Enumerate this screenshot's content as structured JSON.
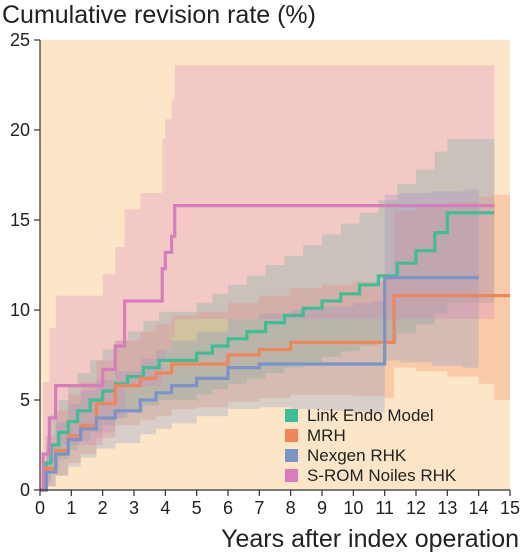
{
  "chart_data": {
    "type": "line",
    "title": "Cumulative revision rate (%)",
    "xlabel": "Years after index operation",
    "ylabel": "",
    "xlim": [
      0,
      15
    ],
    "ylim": [
      0,
      25
    ],
    "xticks": [
      "0",
      "1",
      "2",
      "3",
      "4",
      "5",
      "6",
      "7",
      "8",
      "9",
      "10",
      "11",
      "12",
      "13",
      "14",
      "15"
    ],
    "yticks": [
      "0",
      "5",
      "10",
      "15",
      "20",
      "25"
    ],
    "grid": false,
    "legend_position": "bottom-right",
    "background_color": "#fde6c8",
    "series": [
      {
        "name": "Link Endo Model",
        "color": "#3dbf96",
        "x": [
          0,
          0.2,
          0.35,
          0.6,
          0.9,
          1.2,
          1.6,
          2.0,
          2.4,
          2.8,
          3.3,
          3.8,
          5.0,
          5.5,
          6.0,
          6.6,
          7.2,
          7.8,
          8.4,
          9.0,
          9.6,
          10.2,
          10.8,
          11.4,
          12.0,
          12.6,
          13.0,
          13.5,
          14.3,
          14.5
        ],
        "y": [
          0,
          1.5,
          2.5,
          3.2,
          3.8,
          4.4,
          5.0,
          5.5,
          5.9,
          6.3,
          6.8,
          7.2,
          7.6,
          8.0,
          8.4,
          8.8,
          9.3,
          9.7,
          10.1,
          10.5,
          10.9,
          11.4,
          11.9,
          12.6,
          13.3,
          14.3,
          15.4,
          15.4,
          15.4,
          15.4
        ],
        "ci_upper": [
          0,
          3.0,
          4.2,
          5.0,
          5.8,
          6.5,
          7.2,
          7.8,
          8.3,
          8.8,
          9.4,
          9.9,
          10.4,
          10.9,
          11.4,
          11.9,
          12.5,
          13.0,
          13.6,
          14.2,
          14.8,
          15.4,
          16.1,
          17.0,
          17.8,
          18.8,
          19.5,
          19.5,
          19.5,
          19.5
        ],
        "ci_lower": [
          0,
          0.5,
          1.1,
          1.7,
          2.2,
          2.7,
          3.2,
          3.6,
          4.0,
          4.3,
          4.7,
          5.0,
          5.3,
          5.6,
          5.9,
          6.2,
          6.5,
          6.8,
          7.1,
          7.4,
          7.7,
          8.0,
          8.3,
          8.7,
          9.2,
          9.8,
          10.4,
          10.4,
          10.4,
          10.4
        ]
      },
      {
        "name": "MRH",
        "color": "#f0855a",
        "x": [
          0,
          0.2,
          0.5,
          0.9,
          1.3,
          1.8,
          2.4,
          3.2,
          3.7,
          4.2,
          5.0,
          6.0,
          7.0,
          8.0,
          9.0,
          10.0,
          11.0,
          11.3,
          12.0,
          13.0,
          14.0,
          14.5,
          15.0
        ],
        "y": [
          0,
          1.2,
          2.2,
          3.0,
          3.6,
          4.8,
          5.8,
          6.2,
          6.5,
          7.0,
          7.0,
          7.5,
          7.8,
          8.2,
          8.2,
          8.2,
          8.2,
          10.8,
          10.8,
          10.8,
          10.8,
          10.8,
          10.8
        ],
        "ci_upper": [
          0,
          3.0,
          4.4,
          5.3,
          6.0,
          7.2,
          8.3,
          8.8,
          9.2,
          9.7,
          9.9,
          10.4,
          10.8,
          11.2,
          11.4,
          11.6,
          11.8,
          15.5,
          15.8,
          16.0,
          16.3,
          16.4,
          16.5
        ],
        "ci_lower": [
          0,
          0.2,
          0.8,
          1.5,
          2.0,
          2.9,
          3.6,
          3.9,
          4.1,
          4.5,
          4.6,
          4.9,
          5.1,
          5.3,
          5.3,
          5.2,
          5.1,
          6.8,
          6.6,
          6.3,
          5.9,
          5.0,
          5.0
        ]
      },
      {
        "name": "Nexgen RHK",
        "color": "#7a94c8",
        "x": [
          0,
          0.2,
          0.5,
          0.9,
          1.3,
          1.8,
          2.4,
          3.2,
          3.7,
          4.2,
          5.0,
          6.0,
          7.0,
          8.0,
          9.0,
          10.0,
          10.6,
          11.0,
          11.5,
          12.5,
          13.5,
          14.0
        ],
        "y": [
          0,
          1.0,
          2.0,
          2.8,
          3.4,
          4.0,
          4.4,
          5.0,
          5.4,
          5.8,
          6.2,
          6.8,
          7.0,
          7.0,
          7.0,
          7.0,
          7.0,
          11.8,
          11.8,
          11.8,
          11.8,
          11.8
        ],
        "ci_upper": [
          0,
          2.5,
          3.8,
          4.8,
          5.5,
          6.1,
          6.6,
          7.3,
          7.8,
          8.3,
          8.8,
          9.5,
          9.8,
          10.0,
          10.2,
          10.4,
          10.5,
          16.4,
          16.5,
          16.6,
          16.7,
          16.8
        ],
        "ci_lower": [
          0,
          0.2,
          0.8,
          1.3,
          1.8,
          2.3,
          2.6,
          3.1,
          3.4,
          3.7,
          4.1,
          4.5,
          4.6,
          4.5,
          4.4,
          4.3,
          4.3,
          7.2,
          7.1,
          6.9,
          6.8,
          6.7
        ]
      },
      {
        "name": "S-ROM Noiles RHK",
        "color": "#d77cbd",
        "x": [
          0,
          0.1,
          0.3,
          0.5,
          0.9,
          1.5,
          2.0,
          2.4,
          2.7,
          3.2,
          3.5,
          3.9,
          4.0,
          4.2,
          4.3,
          4.5,
          5.5,
          7.0,
          9.0,
          11.0,
          13.0,
          14.5
        ],
        "y": [
          0,
          2.0,
          4.0,
          5.8,
          5.8,
          5.8,
          6.7,
          8.0,
          10.5,
          10.5,
          10.5,
          12.3,
          13.2,
          14.1,
          15.8,
          15.8,
          15.8,
          15.8,
          15.8,
          15.8,
          15.8,
          15.8
        ],
        "ci_upper": [
          0,
          6.0,
          9.0,
          10.8,
          10.8,
          10.8,
          12.0,
          13.5,
          15.6,
          16.5,
          16.5,
          19.5,
          20.6,
          21.7,
          23.6,
          23.6,
          23.6,
          23.6,
          23.6,
          23.6,
          23.6,
          23.6
        ],
        "ci_lower": [
          0,
          0.3,
          1.5,
          2.5,
          2.5,
          2.5,
          3.2,
          4.0,
          5.8,
          5.8,
          5.8,
          7.2,
          7.8,
          8.5,
          9.5,
          9.5,
          9.5,
          9.5,
          9.5,
          9.5,
          9.5,
          9.5
        ]
      }
    ]
  }
}
